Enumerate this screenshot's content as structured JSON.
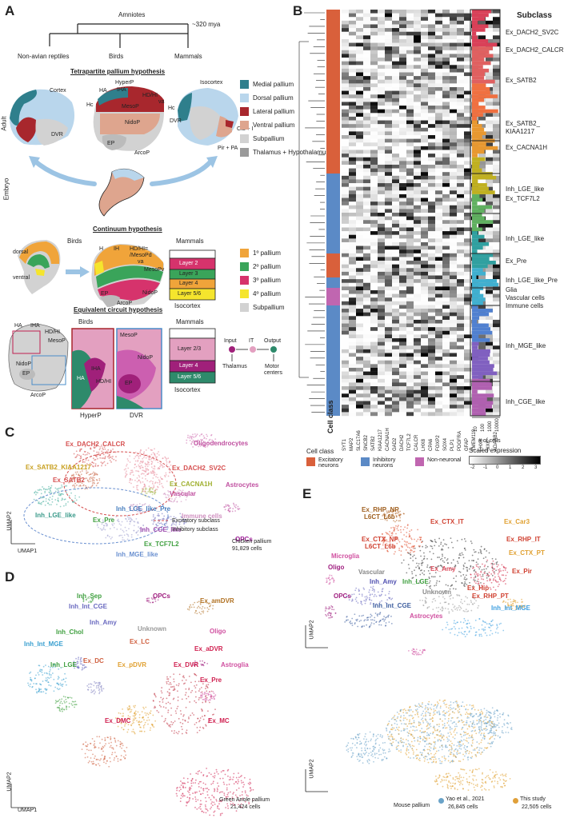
{
  "panels": {
    "a": "A",
    "b": "B",
    "c": "C",
    "d": "D",
    "e": "E"
  },
  "tree": {
    "root": "Amniotes",
    "age": "~320 mya",
    "leaves": [
      "Non-avian reptiles",
      "Birds",
      "Mammals"
    ]
  },
  "tetrapartite": {
    "title": "Tetrapartite pallium hypothesis",
    "adult": "Adult",
    "embryo": "Embryo",
    "reptile": [
      "Cortex",
      "DVR"
    ],
    "bird": [
      "HyperP",
      "HA",
      "IHA",
      "HD/HI",
      "va",
      "Hc",
      "MesoP",
      "NidoP",
      "DVR",
      "EP",
      "ArcoP"
    ],
    "mammal": [
      "Isocortex",
      "Hc",
      "Cla + I",
      "Pir + PA"
    ],
    "legend": [
      "Medial pallium",
      "Dorsal pallium",
      "Lateral pallium",
      "Ventral pallium",
      "Subpallium",
      "Thalamus + Hypothalamus"
    ],
    "legend_colors": [
      "#2f7f8c",
      "#b9d6ec",
      "#a8272d",
      "#dea58e",
      "#d2d2d2",
      "#9a9a9a"
    ]
  },
  "continuum": {
    "title": "Continuum hypothesis",
    "birds": "Birds",
    "mammals": "Mammals",
    "left": [
      "dorsal",
      "ventral"
    ],
    "bird": [
      "H",
      "IH",
      "HD/HI=",
      "/MesoPd",
      "va",
      "MesoPv",
      "NidoP",
      "EP",
      "ArcoP"
    ],
    "layers": [
      "Layer 2",
      "Layer 3",
      "Layer 4",
      "Layer 5/6"
    ],
    "isocortex": "Isocortex",
    "legend": [
      "1º pallium",
      "2º pallium",
      "3º pallium",
      "4º pallium",
      "Subpallium"
    ],
    "legend_colors": [
      "#f0a43a",
      "#3aa45a",
      "#d6336c",
      "#f5e52d",
      "#d2d2d2"
    ]
  },
  "equivalent": {
    "title": "Equivalent circuit hypothesis",
    "birds": "Birds",
    "mammals": "Mammals",
    "bird": [
      "HA",
      "IHA",
      "HD/HI",
      "MesoP",
      "NidoP",
      "EP",
      "ArcoP"
    ],
    "hyper": [
      "HA",
      "IHA",
      "HD/HI"
    ],
    "hyper_title": "HyperP",
    "dvr": [
      "MesoP",
      "NidoP",
      "EP"
    ],
    "dvr_title": "DVR",
    "layers": [
      "Layer 2/3",
      "Layer 4",
      "Layer 5/6"
    ],
    "isocortex": "Isocortex",
    "flow": [
      "Input",
      "IT",
      "Output",
      "Thalamus",
      "Motor",
      "centers"
    ]
  },
  "heatmap": {
    "subclass_title": "Subclass",
    "subclasses": [
      "Ex_DACH2_SV2C",
      "Ex_DACH2_CALCR",
      "Ex_SATB2",
      "Ex_SATB2_",
      "KIAA1217",
      "Ex_CACNA1H",
      "Inh_LGE_like",
      "Ex_TCF7L2",
      "Inh_LGE_like",
      "Ex_Pre",
      "Inh_LGE_like_Pre",
      "Glia",
      "Vascular cells",
      "Immune cells",
      "Inh_MGE_like",
      "Inh_CGE_like"
    ],
    "genes": [
      "SYT1",
      "MAP2",
      "SLC17A6",
      "SNCB2",
      "SATB2",
      "KIAA1217",
      "CACNA1H",
      "GAD2",
      "DACH2",
      "TCF7L2",
      "CALCR",
      "LHX8",
      "CPA6",
      "FOXP2",
      "SOX4",
      "PLP1",
      "PDGFRA",
      "GFAP",
      "TMEM119",
      "LHX6",
      "SIX6",
      "ADARB2"
    ],
    "cell_class": "Cell class",
    "axis_ticks": [
      "10",
      "100",
      "1000",
      "10000"
    ],
    "axis_label": "# of cells",
    "class_legend_title": "Cell class",
    "class_legend": [
      "Excitatory neurons",
      "Inhibitory neurons",
      "Non-neuronal"
    ],
    "class_colors": [
      "#d9603b",
      "#5b8ac6",
      "#c066b0"
    ],
    "scale_title": "Scaled expression",
    "scale_ticks": [
      "-2",
      "-1",
      "0",
      "1",
      "2",
      "3"
    ]
  },
  "umap_c": {
    "labels": [
      "Ex_DACH2_CALCR",
      "Oligodendrocytes",
      "Ex_SATB2_KIAA1217",
      "Ex_DACH2_SV2C",
      "Ex_SATB2",
      "Ex_CACNA1H",
      "Vascular",
      "Astrocytes",
      "Inh_LGE_like_Pre",
      "Inh_LGE_like",
      "Ex_Pre",
      "Immune cells",
      "Inh_CGE_like",
      "Ex_TCF7L2",
      "OPCs",
      "Inh_MGE_like"
    ],
    "legend": [
      "Excitatory subclass",
      "Inhibitory subclass"
    ],
    "species": "Chicken pallium",
    "cells": "91,829 cells",
    "xaxis": "UMAP1",
    "yaxis": "UMAP2"
  },
  "umap_d": {
    "labels": [
      "Inh_Sep",
      "OPCs",
      "Ex_amDVR",
      "Inh_Int_CGE",
      "Unknown",
      "Inh_Chol",
      "Inh_Amy",
      "Oligo",
      "Inh_Int_MGE",
      "Ex_LC",
      "Ex_aDVR",
      "Inh_LGE",
      "Ex_DC",
      "Ex_pDVR",
      "Ex_DVR",
      "Astroglia",
      "Ex_Pre",
      "Ex_DMC",
      "Ex_MC"
    ],
    "species": "Green Anole pallium",
    "cells": "21,424 cells",
    "xaxis": "UMAP1",
    "yaxis": "UMAP2"
  },
  "umap_e": {
    "labels": [
      "Ex_RHP_NP",
      "L6CT_L6b",
      "Ex_CTX_IT",
      "Ex_Car3",
      "Ex_CTX_NP",
      "L6CT_L6b",
      "Ex_RHP_IT",
      "Microglia",
      "Ex_CTX_PT",
      "Oligo",
      "Ex_Amy",
      "Vascular",
      "Inh_Amy",
      "Inh_LGE",
      "Ex_Pir",
      "Unknown",
      "Ex_Hip",
      "OPCs",
      "Ex_RHP_PT",
      "Inh_Int_CGE",
      "Inh_Int_MGE",
      "Astrocytes"
    ],
    "species": "Mouse pallium",
    "legend": [
      "Yao et al., 2021",
      "This study"
    ],
    "legend_cells": [
      "26,845 cells",
      "22,505 cells"
    ],
    "legend_colors": [
      "#6aa3c8",
      "#e0a03a"
    ],
    "yaxis": "UMAP2"
  }
}
